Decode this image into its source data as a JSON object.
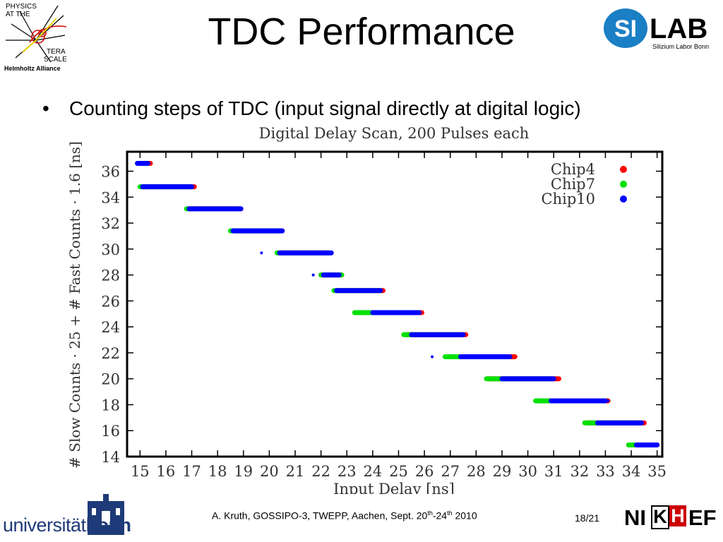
{
  "slide": {
    "title": "TDC Performance",
    "bullet": "Counting steps of TDC (input signal directly at digital logic)"
  },
  "logos": {
    "physics_at_terascale": {
      "line1": "PHYSICS",
      "line2": "AT THE",
      "line3": "TERA",
      "line4": "SCALE",
      "line5": "Helmholtz Alliance"
    },
    "silab": {
      "mark": "SI",
      "word": "LAB",
      "subtitle": "Silizium Labor Bonn"
    },
    "university": {
      "prefix": "universität",
      "suffix": "bonn"
    },
    "nikhef": {
      "left": "NI",
      "k": "K",
      "h": "H",
      "right": "EF"
    }
  },
  "footer": {
    "text_main": "A. Kruth, GOSSIPO-3, TWEPP, Aachen, Sept. 20",
    "sup1": "th",
    "mid": "-24",
    "sup2": "th",
    "year": " 2010",
    "page": "18/21"
  },
  "colors": {
    "chip4": "#ff0000",
    "chip7": "#00e000",
    "chip10": "#0000ff",
    "silab_blue": "#1a7fc4",
    "uni_blue": "#1e3a78",
    "nikhef_red": "#cc0000"
  },
  "chart_data": {
    "type": "scatter",
    "title": "Digital Delay Scan, 200 Pulses each",
    "xlabel": "Input Delay [ns]",
    "ylabel": "# Slow Counts · 25 + # Fast Counts · 1.6 [ns]",
    "xlim": [
      14.5,
      35.2
    ],
    "ylim": [
      14,
      37.5
    ],
    "x_ticks": [
      15,
      16,
      17,
      18,
      19,
      20,
      21,
      22,
      23,
      24,
      25,
      26,
      27,
      28,
      29,
      30,
      31,
      32,
      33,
      34,
      35
    ],
    "y_ticks": [
      14,
      16,
      18,
      20,
      22,
      24,
      26,
      28,
      30,
      32,
      34,
      36
    ],
    "legend_position": "top-right",
    "series": [
      {
        "name": "Chip4",
        "color": "#ff0000",
        "segments": [
          {
            "y": 36.6,
            "x": [
              14.9,
              15.4
            ]
          },
          {
            "y": 34.8,
            "x": [
              15.1,
              17.1
            ]
          },
          {
            "y": 33.1,
            "x": [
              16.9,
              18.9
            ]
          },
          {
            "y": 31.4,
            "x": [
              18.6,
              20.5
            ]
          },
          {
            "y": 29.7,
            "x": [
              20.4,
              22.3
            ]
          },
          {
            "y": 28.0,
            "x": [
              22.0,
              22.8
            ]
          },
          {
            "y": 26.8,
            "x": [
              22.6,
              24.4
            ]
          },
          {
            "y": 25.1,
            "x": [
              23.5,
              25.9
            ]
          },
          {
            "y": 23.4,
            "x": [
              25.3,
              27.6
            ]
          },
          {
            "y": 21.7,
            "x": [
              27.2,
              29.5
            ]
          },
          {
            "y": 20.0,
            "x": [
              28.5,
              31.2
            ]
          },
          {
            "y": 18.3,
            "x": [
              30.4,
              33.1
            ]
          },
          {
            "y": 16.6,
            "x": [
              32.3,
              34.5
            ]
          },
          {
            "y": 14.9,
            "x": [
              33.9,
              35.0
            ]
          }
        ]
      },
      {
        "name": "Chip7",
        "color": "#00e000",
        "segments": [
          {
            "y": 36.6,
            "x": [
              14.9,
              15.3
            ]
          },
          {
            "y": 34.8,
            "x": [
              15.0,
              17.0
            ]
          },
          {
            "y": 33.1,
            "x": [
              16.8,
              18.8
            ]
          },
          {
            "y": 31.4,
            "x": [
              18.5,
              20.4
            ]
          },
          {
            "y": 29.7,
            "x": [
              20.3,
              22.3
            ]
          },
          {
            "y": 28.0,
            "x": [
              22.0,
              22.8
            ]
          },
          {
            "y": 26.8,
            "x": [
              22.5,
              24.3
            ]
          },
          {
            "y": 25.1,
            "x": [
              23.3,
              25.6
            ]
          },
          {
            "y": 23.4,
            "x": [
              25.2,
              27.4
            ]
          },
          {
            "y": 21.7,
            "x": [
              26.8,
              29.2
            ]
          },
          {
            "y": 20.0,
            "x": [
              28.4,
              30.9
            ]
          },
          {
            "y": 18.3,
            "x": [
              30.3,
              32.8
            ]
          },
          {
            "y": 16.6,
            "x": [
              32.2,
              34.3
            ]
          },
          {
            "y": 14.9,
            "x": [
              33.9,
              34.9
            ]
          }
        ]
      },
      {
        "name": "Chip10",
        "color": "#0000ff",
        "segments": [
          {
            "y": 36.6,
            "x": [
              14.9,
              15.3
            ]
          },
          {
            "y": 34.8,
            "x": [
              15.1,
              17.0
            ]
          },
          {
            "y": 33.1,
            "x": [
              16.9,
              18.9
            ]
          },
          {
            "y": 31.4,
            "x": [
              18.6,
              20.5
            ]
          },
          {
            "y": 29.7,
            "x": [
              20.4,
              22.4
            ]
          },
          {
            "y": 28.0,
            "x": [
              22.1,
              22.7
            ]
          },
          {
            "y": 26.8,
            "x": [
              22.6,
              24.3
            ]
          },
          {
            "y": 25.1,
            "x": [
              24.0,
              25.8
            ]
          },
          {
            "y": 23.4,
            "x": [
              25.5,
              27.5
            ]
          },
          {
            "y": 21.7,
            "x": [
              27.4,
              29.3
            ]
          },
          {
            "y": 20.0,
            "x": [
              29.0,
              31.0
            ]
          },
          {
            "y": 18.3,
            "x": [
              30.9,
              33.0
            ]
          },
          {
            "y": 16.6,
            "x": [
              32.7,
              34.4
            ]
          },
          {
            "y": 14.9,
            "x": [
              34.2,
              35.0
            ]
          }
        ],
        "outliers": [
          {
            "x": 19.7,
            "y": 29.7
          },
          {
            "x": 21.7,
            "y": 28.0
          },
          {
            "x": 26.3,
            "y": 21.7
          },
          {
            "x": 33.1,
            "y": 18.3
          }
        ]
      }
    ]
  }
}
